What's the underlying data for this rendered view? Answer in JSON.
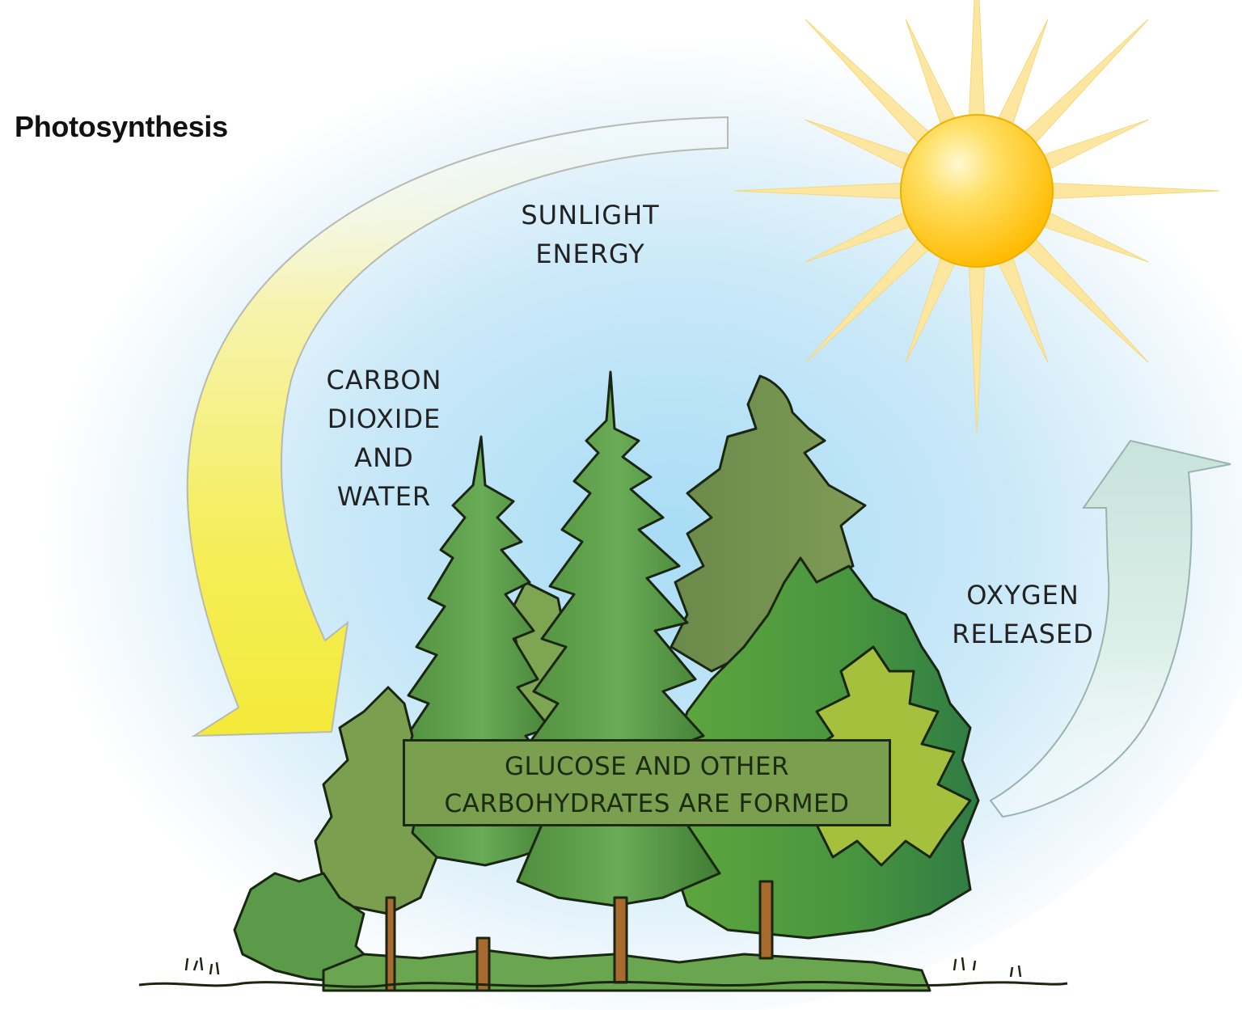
{
  "title": "Photosynthesis",
  "labels": {
    "sunlight": [
      "SUNLIGHT",
      "ENERGY"
    ],
    "inputs": [
      "CARBON",
      "DIOXIDE",
      "AND",
      "WATER"
    ],
    "oxygen": [
      "OXYGEN",
      "RELEASED"
    ],
    "glucose": [
      "GLUCOSE AND OTHER",
      "CARBOHYDRATES ARE FORMED"
    ]
  },
  "colors": {
    "sun": "#ffc21a",
    "sun_rays": "#fde6a0",
    "sky": "#a8dcf5",
    "inputs_arrow": "#f5ee58",
    "oxygen_arrow": "#cfe7e2",
    "tree_dark": "#5f9a45",
    "tree_olive": "#6f8a4a",
    "tree_light": "#9fbf3c",
    "glucose_box": "#7aa04f"
  },
  "icons": [
    "sun-icon",
    "arrow-down-icon",
    "arrow-up-icon",
    "forest-illustration"
  ]
}
